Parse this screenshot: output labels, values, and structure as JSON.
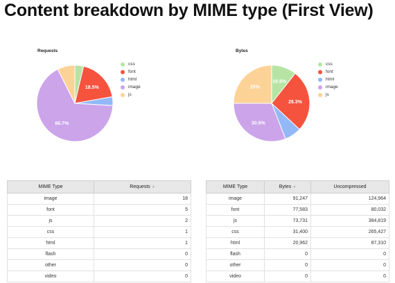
{
  "page": {
    "title": "Content breakdown by MIME type (First View)"
  },
  "colors": {
    "css": "#b7e4a4",
    "font": "#f5533d",
    "html": "#92b8f8",
    "image": "#cba4ea",
    "js": "#fdd297"
  },
  "chart_data": [
    {
      "type": "pie",
      "title": "Requests",
      "legend": [
        "css",
        "font",
        "html",
        "image",
        "js"
      ],
      "values": [
        1,
        5,
        1,
        18,
        2
      ],
      "labels": [
        "",
        "18.5%",
        "",
        "66.7%",
        ""
      ],
      "legend_position": "right"
    },
    {
      "type": "pie",
      "title": "Bytes",
      "legend": [
        "css",
        "font",
        "html",
        "image",
        "js"
      ],
      "values": [
        31400,
        77583,
        20962,
        91247,
        73731
      ],
      "labels": [
        "10.6%",
        "26.3%",
        "",
        "30.9%",
        "25%"
      ],
      "legend_position": "right"
    }
  ],
  "requests_table": {
    "headers": [
      "MIME Type",
      "Requests"
    ],
    "sort_icon": "sort-down-icon",
    "rows": [
      [
        "image",
        "18"
      ],
      [
        "font",
        "5"
      ],
      [
        "js",
        "2"
      ],
      [
        "css",
        "1"
      ],
      [
        "html",
        "1"
      ],
      [
        "flash",
        "0"
      ],
      [
        "other",
        "0"
      ],
      [
        "video",
        "0"
      ]
    ]
  },
  "bytes_table": {
    "headers": [
      "MIME Type",
      "Bytes",
      "Uncompressed"
    ],
    "sort_icon": "sort-down-icon",
    "rows": [
      [
        "image",
        "91,247",
        "124,964"
      ],
      [
        "font",
        "77,583",
        "80,032"
      ],
      [
        "js",
        "73,731",
        "384,819"
      ],
      [
        "css",
        "31,400",
        "265,427"
      ],
      [
        "html",
        "20,962",
        "87,310"
      ],
      [
        "flash",
        "0",
        "0"
      ],
      [
        "other",
        "0",
        "0"
      ],
      [
        "video",
        "0",
        "0"
      ]
    ]
  }
}
